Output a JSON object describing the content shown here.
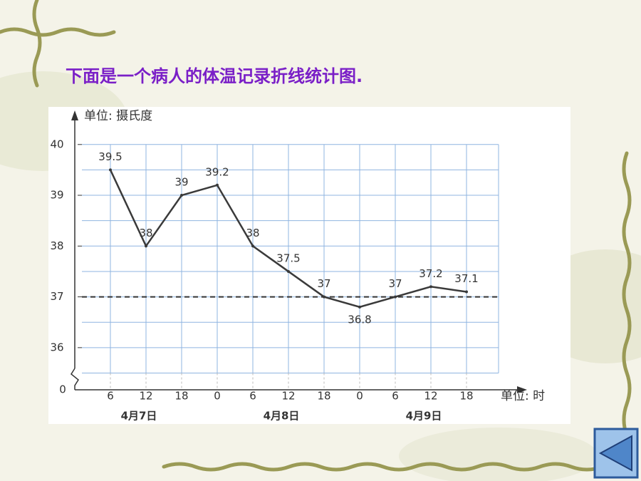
{
  "chart_data": {
    "type": "line",
    "title": "下面是一个病人的体温记录折线统计图.",
    "y_axis_label": "单位: 摄氏度",
    "x_axis_label": "单位: 时",
    "categories": [
      "6",
      "12",
      "18",
      "0",
      "6",
      "12",
      "18",
      "0",
      "6",
      "12",
      "18"
    ],
    "x_groups": [
      "4月7日",
      "4月8日",
      "4月9日"
    ],
    "series": [
      {
        "name": null,
        "color": "#3a3a3a",
        "values": [
          39.5,
          38,
          39,
          39.2,
          38,
          37.5,
          37,
          36.8,
          37,
          37.2,
          37.1
        ]
      }
    ],
    "ylim": [
      35.17,
      40.53
    ],
    "yticks": [
      36,
      37,
      38,
      39,
      40
    ],
    "y_break_label": "0",
    "reference_line": 37,
    "grid": true,
    "grid_color": "#8fb4e0"
  }
}
